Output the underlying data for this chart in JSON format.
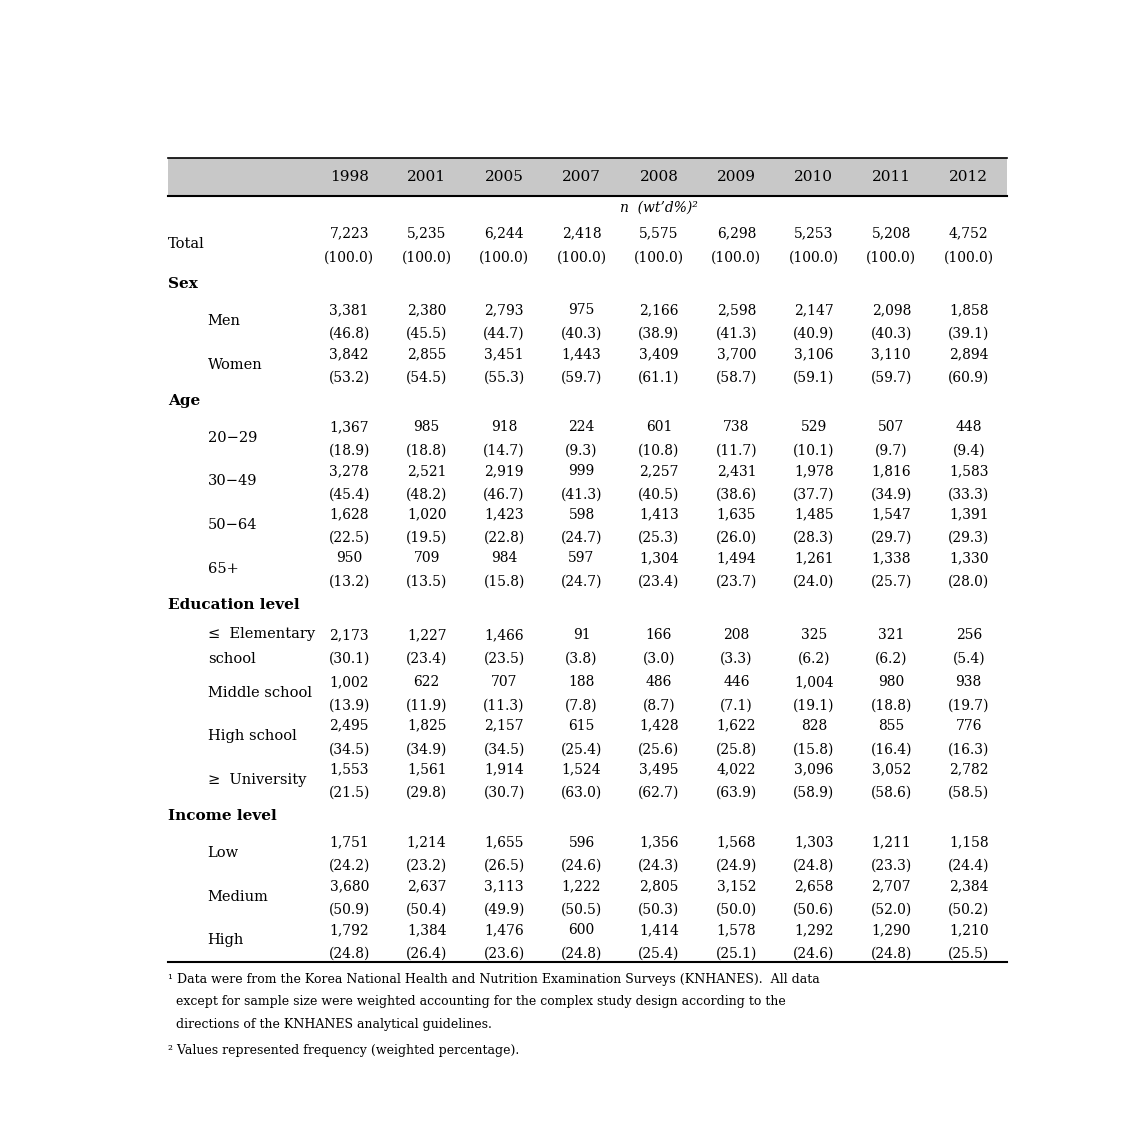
{
  "years": [
    "1998",
    "2001",
    "2005",
    "2007",
    "2008",
    "2009",
    "2010",
    "2011",
    "2012"
  ],
  "rows": [
    {
      "label": "Total",
      "indent": 0,
      "is_section": false,
      "is_unit": false,
      "values": [
        "7,223\n(100.0)",
        "5,235\n(100.0)",
        "6,244\n(100.0)",
        "2,418\n(100.0)",
        "5,575\n(100.0)",
        "6,298\n(100.0)",
        "5,253\n(100.0)",
        "5,208\n(100.0)",
        "4,752\n(100.0)"
      ]
    },
    {
      "label": "Sex",
      "indent": 0,
      "is_section": true,
      "is_unit": false,
      "values": [
        "",
        "",
        "",
        "",
        "",
        "",
        "",
        "",
        ""
      ]
    },
    {
      "label": "Men",
      "indent": 1,
      "is_section": false,
      "is_unit": false,
      "values": [
        "3,381\n(46.8)",
        "2,380\n(45.5)",
        "2,793\n(44.7)",
        "975\n(40.3)",
        "2,166\n(38.9)",
        "2,598\n(41.3)",
        "2,147\n(40.9)",
        "2,098\n(40.3)",
        "1,858\n(39.1)"
      ]
    },
    {
      "label": "Women",
      "indent": 1,
      "is_section": false,
      "is_unit": false,
      "values": [
        "3,842\n(53.2)",
        "2,855\n(54.5)",
        "3,451\n(55.3)",
        "1,443\n(59.7)",
        "3,409\n(61.1)",
        "3,700\n(58.7)",
        "3,106\n(59.1)",
        "3,110\n(59.7)",
        "2,894\n(60.9)"
      ]
    },
    {
      "label": "Age",
      "indent": 0,
      "is_section": true,
      "is_unit": false,
      "values": [
        "",
        "",
        "",
        "",
        "",
        "",
        "",
        "",
        ""
      ]
    },
    {
      "label": "20−29",
      "indent": 1,
      "is_section": false,
      "is_unit": false,
      "values": [
        "1,367\n(18.9)",
        "985\n(18.8)",
        "918\n(14.7)",
        "224\n(9.3)",
        "601\n(10.8)",
        "738\n(11.7)",
        "529\n(10.1)",
        "507\n(9.7)",
        "448\n(9.4)"
      ]
    },
    {
      "label": "30−49",
      "indent": 1,
      "is_section": false,
      "is_unit": false,
      "values": [
        "3,278\n(45.4)",
        "2,521\n(48.2)",
        "2,919\n(46.7)",
        "999\n(41.3)",
        "2,257\n(40.5)",
        "2,431\n(38.6)",
        "1,978\n(37.7)",
        "1,816\n(34.9)",
        "1,583\n(33.3)"
      ]
    },
    {
      "label": "50−64",
      "indent": 1,
      "is_section": false,
      "is_unit": false,
      "values": [
        "1,628\n(22.5)",
        "1,020\n(19.5)",
        "1,423\n(22.8)",
        "598\n(24.7)",
        "1,413\n(25.3)",
        "1,635\n(26.0)",
        "1,485\n(28.3)",
        "1,547\n(29.7)",
        "1,391\n(29.3)"
      ]
    },
    {
      "label": "65+",
      "indent": 1,
      "is_section": false,
      "is_unit": false,
      "values": [
        "950\n(13.2)",
        "709\n(13.5)",
        "984\n(15.8)",
        "597\n(24.7)",
        "1,304\n(23.4)",
        "1,494\n(23.7)",
        "1,261\n(24.0)",
        "1,338\n(25.7)",
        "1,330\n(28.0)"
      ]
    },
    {
      "label": "Education level",
      "indent": 0,
      "is_section": true,
      "is_unit": false,
      "values": [
        "",
        "",
        "",
        "",
        "",
        "",
        "",
        "",
        ""
      ]
    },
    {
      "label": "≤  Elementary\nschool",
      "indent": 1,
      "is_section": false,
      "is_unit": false,
      "values": [
        "2,173\n(30.1)",
        "1,227\n(23.4)",
        "1,466\n(23.5)",
        "91\n(3.8)",
        "166\n(3.0)",
        "208\n(3.3)",
        "325\n(6.2)",
        "321\n(6.2)",
        "256\n(5.4)"
      ]
    },
    {
      "label": "Middle school",
      "indent": 1,
      "is_section": false,
      "is_unit": false,
      "values": [
        "1,002\n(13.9)",
        "622\n(11.9)",
        "707\n(11.3)",
        "188\n(7.8)",
        "486\n(8.7)",
        "446\n(7.1)",
        "1,004\n(19.1)",
        "980\n(18.8)",
        "938\n(19.7)"
      ]
    },
    {
      "label": "High school",
      "indent": 1,
      "is_section": false,
      "is_unit": false,
      "values": [
        "2,495\n(34.5)",
        "1,825\n(34.9)",
        "2,157\n(34.5)",
        "615\n(25.4)",
        "1,428\n(25.6)",
        "1,622\n(25.8)",
        "828\n(15.8)",
        "855\n(16.4)",
        "776\n(16.3)"
      ]
    },
    {
      "label": "≥  University",
      "indent": 1,
      "is_section": false,
      "is_unit": false,
      "values": [
        "1,553\n(21.5)",
        "1,561\n(29.8)",
        "1,914\n(30.7)",
        "1,524\n(63.0)",
        "3,495\n(62.7)",
        "4,022\n(63.9)",
        "3,096\n(58.9)",
        "3,052\n(58.6)",
        "2,782\n(58.5)"
      ]
    },
    {
      "label": "Income level",
      "indent": 0,
      "is_section": true,
      "is_unit": false,
      "values": [
        "",
        "",
        "",
        "",
        "",
        "",
        "",
        "",
        ""
      ]
    },
    {
      "label": "Low",
      "indent": 1,
      "is_section": false,
      "is_unit": false,
      "values": [
        "1,751\n(24.2)",
        "1,214\n(23.2)",
        "1,655\n(26.5)",
        "596\n(24.6)",
        "1,356\n(24.3)",
        "1,568\n(24.9)",
        "1,303\n(24.8)",
        "1,211\n(23.3)",
        "1,158\n(24.4)"
      ]
    },
    {
      "label": "Medium",
      "indent": 1,
      "is_section": false,
      "is_unit": false,
      "values": [
        "3,680\n(50.9)",
        "2,637\n(50.4)",
        "3,113\n(49.9)",
        "1,222\n(50.5)",
        "2,805\n(50.3)",
        "3,152\n(50.0)",
        "2,658\n(50.6)",
        "2,707\n(52.0)",
        "2,384\n(50.2)"
      ]
    },
    {
      "label": "High",
      "indent": 1,
      "is_section": false,
      "is_unit": false,
      "values": [
        "1,792\n(24.8)",
        "1,384\n(26.4)",
        "1,476\n(23.6)",
        "600\n(24.8)",
        "1,414\n(25.4)",
        "1,578\n(25.1)",
        "1,292\n(24.6)",
        "1,290\n(24.8)",
        "1,210\n(25.5)"
      ]
    }
  ],
  "footnote1a": "¹ Data were from the Korea National Health and Nutrition Examination Surveys (KNHANES).  All data",
  "footnote1b": "  except for sample size were weighted accounting for the complex study design according to the",
  "footnote1c": "  directions of the KNHANES analytical guidelines.",
  "footnote2": "² Values represented frequency (weighted percentage).",
  "unit_text": "n  (wt’d%)²",
  "header_bg": "#c8c8c8",
  "font_size_header": 11,
  "font_size_year": 11,
  "font_size_section": 11,
  "font_size_label": 10.5,
  "font_size_data": 10,
  "font_size_footnote": 9
}
